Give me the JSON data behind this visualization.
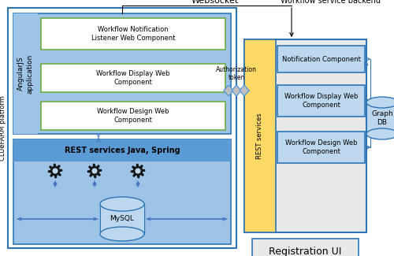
{
  "title": "Websocket",
  "title2": "Workflow service backend",
  "left_label": "CLUeFARM platform",
  "bottom_label": "Registration UI",
  "bg_color": "#ffffff",
  "blue_fill": "#9dc3e6",
  "blue_dark": "#2e75b6",
  "blue_med": "#5b9bd5",
  "green_border": "#70ad47",
  "yellow_fill": "#ffd966",
  "light_blue_fill": "#bdd7ee",
  "arrow_color": "#4472c4",
  "auth_label": "Authorization\ntoken",
  "components_left": [
    "Workflow Notification\nListener Web Component",
    "Workflow Display Web\nComponent",
    "Workflow Design Web\nComponent"
  ],
  "components_right": [
    "Notification Component",
    "Workflow Display Web\nComponent",
    "Workflow Design Web\nComponent"
  ]
}
